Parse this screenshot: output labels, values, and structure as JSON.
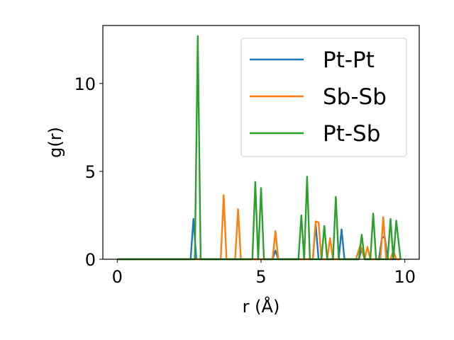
{
  "chart_data": {
    "type": "line",
    "title": "",
    "xlabel": "r (Å)",
    "ylabel": "g(r)",
    "xlim": [
      -0.5,
      10.5
    ],
    "ylim": [
      0,
      13.3
    ],
    "xticks": [
      0,
      5,
      10
    ],
    "xtick_labels": [
      "0",
      "5",
      "10"
    ],
    "yticks": [
      0,
      5,
      10
    ],
    "ytick_labels": [
      "0",
      "5",
      "10"
    ],
    "grid": false,
    "legend_position": "top-right",
    "series": [
      {
        "name": "Pt-Pt",
        "color": "#1f77b4",
        "x": [
          0,
          2.55,
          2.65,
          2.75,
          5.4,
          5.5,
          5.6,
          6.8,
          6.9,
          7.0,
          7.7,
          7.8,
          7.9,
          8.4,
          8.5,
          8.6,
          9.1,
          9.2,
          9.3,
          9.4,
          9.8
        ],
        "y": [
          0,
          0,
          2.3,
          0,
          0,
          0.5,
          0,
          0,
          2.0,
          0,
          0,
          1.7,
          0,
          0,
          0.6,
          0,
          0,
          1.2,
          1.3,
          0,
          0
        ]
      },
      {
        "name": "Sb-Sb",
        "color": "#ff7f0e",
        "x": [
          0,
          3.6,
          3.7,
          3.8,
          4.1,
          4.2,
          4.3,
          5.4,
          5.5,
          5.6,
          6.8,
          6.9,
          7.0,
          7.1,
          7.3,
          7.4,
          7.5,
          8.3,
          8.45,
          8.6,
          8.7,
          8.8,
          9.15,
          9.25,
          9.35,
          9.5,
          9.6,
          9.7,
          9.85
        ],
        "y": [
          0,
          0,
          3.65,
          0,
          0,
          2.85,
          0,
          0,
          1.6,
          0,
          0,
          2.15,
          2.1,
          0,
          0,
          1.2,
          0,
          0,
          0.8,
          0,
          0.7,
          0,
          0,
          2.4,
          0,
          0,
          0.5,
          0,
          0
        ]
      },
      {
        "name": "Pt-Sb",
        "color": "#2ca02c",
        "x": [
          0,
          2.7,
          2.8,
          2.9,
          4.7,
          4.8,
          4.9,
          5.0,
          5.1,
          6.3,
          6.4,
          6.5,
          6.6,
          6.7,
          7.1,
          7.2,
          7.3,
          7.5,
          7.6,
          7.7,
          8.4,
          8.5,
          8.6,
          8.8,
          8.9,
          9.0,
          9.4,
          9.5,
          9.6,
          9.7,
          9.85
        ],
        "y": [
          0,
          0,
          12.7,
          0,
          0,
          4.4,
          0,
          4.05,
          0,
          0,
          2.5,
          0,
          4.7,
          0,
          0,
          1.9,
          0,
          0,
          3.55,
          0,
          0,
          1.4,
          0,
          0,
          2.6,
          0,
          0,
          2.3,
          0,
          2.2,
          0
        ]
      }
    ]
  }
}
